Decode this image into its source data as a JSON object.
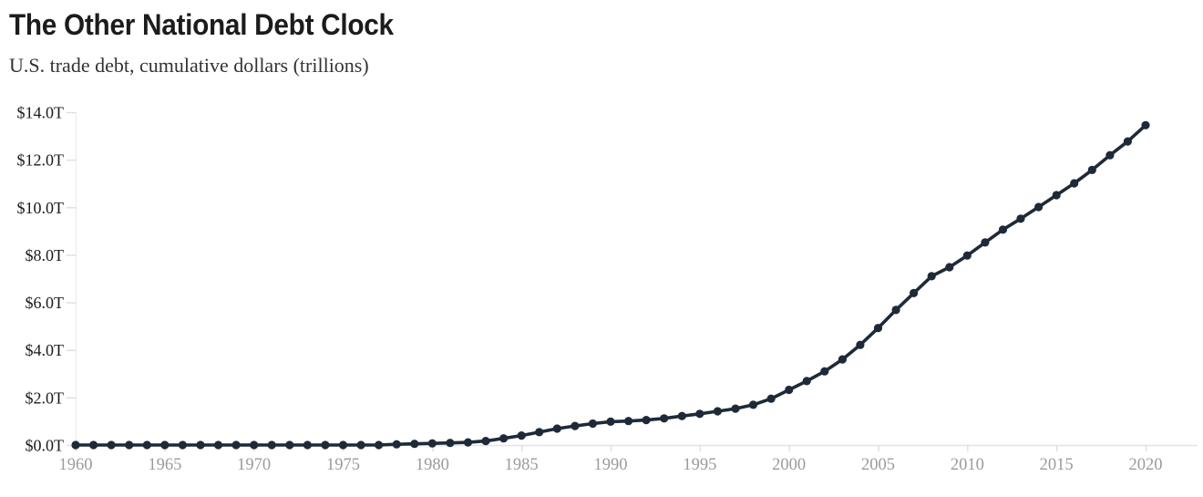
{
  "header": {
    "title": "The Other National Debt Clock",
    "subtitle": "U.S. trade debt, cumulative dollars (trillions)"
  },
  "chart_data": {
    "type": "line",
    "title": "The Other National Debt Clock",
    "subtitle": "U.S. trade debt, cumulative dollars (trillions)",
    "xlabel": "",
    "ylabel": "",
    "xlim": [
      1960,
      2020
    ],
    "ylim": [
      0,
      14
    ],
    "grid": false,
    "legend": false,
    "marker": "circle",
    "x": [
      1960,
      1961,
      1962,
      1963,
      1964,
      1965,
      1966,
      1967,
      1968,
      1969,
      1970,
      1971,
      1972,
      1973,
      1974,
      1975,
      1976,
      1977,
      1978,
      1979,
      1980,
      1981,
      1982,
      1983,
      1984,
      1985,
      1986,
      1987,
      1988,
      1989,
      1990,
      1991,
      1992,
      1993,
      1994,
      1995,
      1996,
      1997,
      1998,
      1999,
      2000,
      2001,
      2002,
      2003,
      2004,
      2005,
      2006,
      2007,
      2008,
      2009,
      2010,
      2011,
      2012,
      2013,
      2014,
      2015,
      2016,
      2017,
      2018,
      2019,
      2020
    ],
    "values": [
      0,
      0,
      0,
      0,
      0,
      0,
      0,
      0,
      0,
      0,
      0,
      0,
      0,
      0,
      0,
      0,
      0,
      0,
      0.03,
      0.05,
      0.07,
      0.09,
      0.11,
      0.17,
      0.28,
      0.4,
      0.54,
      0.69,
      0.8,
      0.9,
      0.98,
      1.01,
      1.05,
      1.12,
      1.22,
      1.31,
      1.42,
      1.53,
      1.69,
      1.95,
      2.32,
      2.69,
      3.1,
      3.6,
      4.21,
      4.92,
      5.68,
      6.39,
      7.1,
      7.48,
      7.97,
      8.52,
      9.06,
      9.52,
      10.01,
      10.51,
      11.01,
      11.57,
      12.19,
      12.77,
      13.45
    ],
    "x_tick_values": [
      1960,
      1965,
      1970,
      1975,
      1980,
      1985,
      1990,
      1995,
      2000,
      2005,
      2010,
      2015,
      2020
    ],
    "x_tick_labels": [
      "1960",
      "1965",
      "1970",
      "1975",
      "1980",
      "1985",
      "1990",
      "1995",
      "2000",
      "2005",
      "2010",
      "2015",
      "2020"
    ],
    "y_tick_values": [
      0,
      2,
      4,
      6,
      8,
      10,
      12,
      14
    ],
    "y_tick_labels": [
      "$0.0T",
      "$2.0T",
      "$4.0T",
      "$6.0T",
      "$8.0T",
      "$10.0T",
      "$12.0T",
      "$14.0T"
    ]
  },
  "colors": {
    "line": "#1e2a38",
    "marker": "#1e2a38",
    "title": "#1c1c1c",
    "subtitle": "#333333",
    "y_tick_label": "#1b1b1b",
    "x_tick_label": "#9b9b9b",
    "axis_line": "#e3e3e3",
    "y_axis_line": "#ededed",
    "tick_mark": "#dedede",
    "background": "#ffffff"
  }
}
